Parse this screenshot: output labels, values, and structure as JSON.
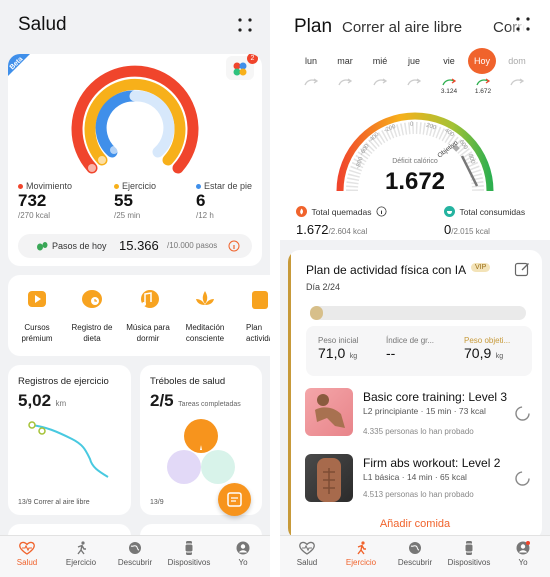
{
  "health": {
    "title": "Salud",
    "beta": "Beta",
    "badge_count": "2",
    "metrics": [
      {
        "label": "Movimiento",
        "value": "732",
        "sub": "/270 kcal",
        "color": "#f0452c"
      },
      {
        "label": "Ejercicio",
        "value": "55",
        "sub": "/25 min",
        "color": "#f7b01a"
      },
      {
        "label": "Estar de pie",
        "value": "6",
        "sub": "/12 h",
        "color": "#3f8fea"
      }
    ],
    "steps": {
      "label": "Pasos de hoy",
      "value": "15.366",
      "goal": "/10.000 pasos"
    },
    "services": [
      "Cursos prémium",
      "Registro de dieta",
      "Música para dormir",
      "Meditación consciente",
      "Plan actividad"
    ],
    "exercise_card": {
      "title": "Registros de ejercicio",
      "value": "5,02",
      "unit": "km",
      "footer": "13/9  Correr al aire libre"
    },
    "clover_card": {
      "title": "Tréboles de salud",
      "value": "2/5",
      "sub": "Tareas completadas",
      "footer": "13/9"
    },
    "nav": [
      "Salud",
      "Ejercicio",
      "Descubrir",
      "Dispositivos",
      "Yo"
    ]
  },
  "plan": {
    "tabs": [
      "Plan",
      "Correr al aire libre",
      "Correr"
    ],
    "days": [
      "lun",
      "mar",
      "mié",
      "jue",
      "vie",
      "Hoy",
      "dom"
    ],
    "day_values": {
      "vie": "3.124",
      "hoy": "1.672"
    },
    "gauge": {
      "ticks": [
        "-800",
        "-600",
        "-400",
        "-200",
        "0",
        "200",
        "400",
        "600",
        "800"
      ],
      "deficit_label": "Déficit calórico",
      "objective_label": "Objetivo",
      "value": "1.672"
    },
    "burned": {
      "label": "Total quemadas",
      "value": "1.672",
      "goal": "/2.604 kcal"
    },
    "consumed": {
      "label": "Total consumidas",
      "value": "0",
      "goal": "/2.015 kcal"
    },
    "ai_plan": {
      "title": "Plan de actividad física con IA",
      "vip": "VIP",
      "day": "Día 2/24",
      "progress": 0.03,
      "stats": [
        {
          "label": "Peso inicial",
          "value": "71,0",
          "unit": "kg"
        },
        {
          "label": "Índice de gr...",
          "value": "--",
          "unit": ""
        },
        {
          "label": "Peso objeti...",
          "value": "70,9",
          "unit": "kg"
        }
      ]
    },
    "workouts": [
      {
        "title": "Basic core training: Level 3",
        "sub": "L2 principiante · 15 min · 73 kcal",
        "count": "4.335 personas lo han probado"
      },
      {
        "title": "Firm abs workout: Level 2",
        "sub": "L1 básica · 14 min · 65 kcal",
        "count": "4.513 personas lo han probado"
      }
    ],
    "add_food": "Añadir comida",
    "nav": [
      "Salud",
      "Ejercicio",
      "Descubrir",
      "Dispositivos",
      "Yo"
    ]
  },
  "colors": {
    "accent": "#f0632c",
    "move": "#f0452c",
    "exercise": "#f7b01a",
    "stand": "#3f8fea",
    "gold": "#c79a3a"
  }
}
